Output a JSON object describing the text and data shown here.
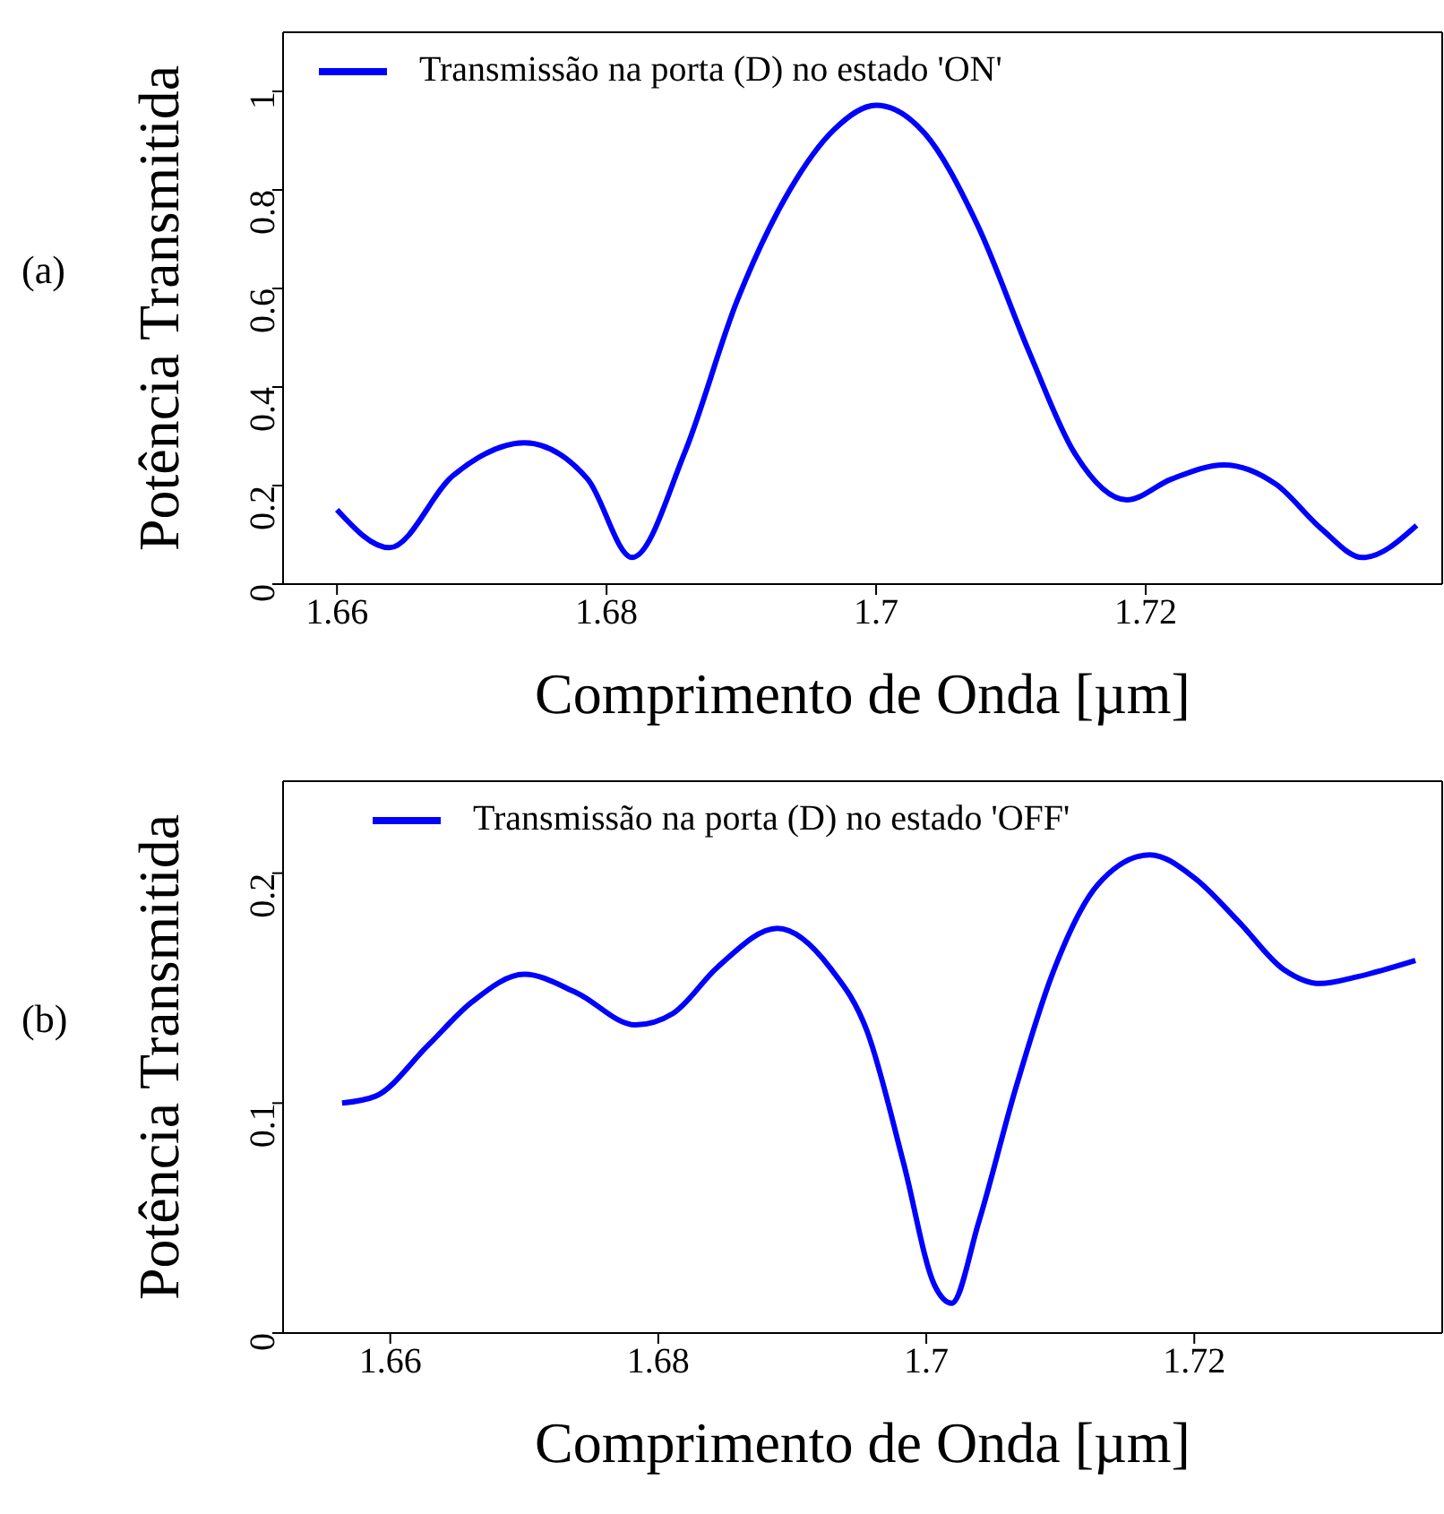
{
  "chart_data": [
    {
      "type": "line",
      "xlabel": "Comprimento de Onda [µm]",
      "ylabel": "Potência Transmitida",
      "annotations": [
        "(a)"
      ],
      "legend": "top left",
      "xlim": [
        1.656,
        1.742
      ],
      "xticks": [
        {
          "value": 1.66,
          "label": "1.66"
        },
        {
          "value": 1.68,
          "label": "1.68"
        },
        {
          "value": 1.7,
          "label": "1.7"
        },
        {
          "value": 1.72,
          "label": "1.72"
        }
      ],
      "ylim": [
        0,
        1.12
      ],
      "yticks": [
        0,
        0.2,
        0.4,
        0.6,
        0.8,
        1
      ],
      "grid": false,
      "marker": "none",
      "line_style": "solid",
      "x": [
        1.66,
        1.6639,
        1.6686,
        1.6739,
        1.6786,
        1.6819,
        1.6858,
        1.6897,
        1.6936,
        1.6969,
        1.7,
        1.7036,
        1.7075,
        1.7114,
        1.7147,
        1.7186,
        1.7219,
        1.7258,
        1.7297,
        1.733,
        1.7361,
        1.7401
      ],
      "series": [
        {
          "name": "Transmissão na porta (D) no estado 'ON'",
          "color": "#0000ff",
          "values": [
            0.151,
            0.074,
            0.22,
            0.287,
            0.213,
            0.054,
            0.267,
            0.576,
            0.8,
            0.923,
            0.972,
            0.915,
            0.73,
            0.468,
            0.267,
            0.171,
            0.213,
            0.242,
            0.202,
            0.113,
            0.054,
            0.119
          ]
        }
      ]
    },
    {
      "type": "line",
      "xlabel": "Comprimento de Onda [µm]",
      "ylabel": "Potência Transmitida",
      "annotations": [
        "(b)"
      ],
      "legend": "top left",
      "xlim": [
        1.652,
        1.7385
      ],
      "xticks": [
        {
          "value": 1.66,
          "label": "1.66"
        },
        {
          "value": 1.68,
          "label": "1.68"
        },
        {
          "value": 1.7,
          "label": "1.7"
        },
        {
          "value": 1.72,
          "label": "1.72"
        }
      ],
      "ylim": [
        0,
        0.24
      ],
      "yticks": [
        0,
        0.1,
        0.2
      ],
      "grid": false,
      "marker": "none",
      "line_style": "solid",
      "x": [
        1.6564,
        1.6589,
        1.6628,
        1.6661,
        1.67,
        1.6739,
        1.6783,
        1.6811,
        1.6844,
        1.6889,
        1.6928,
        1.6956,
        1.6983,
        1.7006,
        1.7019,
        1.7039,
        1.7067,
        1.7094,
        1.7128,
        1.7167,
        1.72,
        1.7233,
        1.7267,
        1.7294,
        1.7322,
        1.7365
      ],
      "series": [
        {
          "name": "Transmissão na porta (D) no estado 'OFF'",
          "color": "#0000ff",
          "values": [
            0.1,
            0.103,
            0.125,
            0.144,
            0.156,
            0.148,
            0.134,
            0.139,
            0.159,
            0.176,
            0.159,
            0.131,
            0.074,
            0.021,
            0.013,
            0.048,
            0.107,
            0.156,
            0.195,
            0.208,
            0.198,
            0.179,
            0.158,
            0.152,
            0.155,
            0.162
          ]
        }
      ]
    }
  ]
}
